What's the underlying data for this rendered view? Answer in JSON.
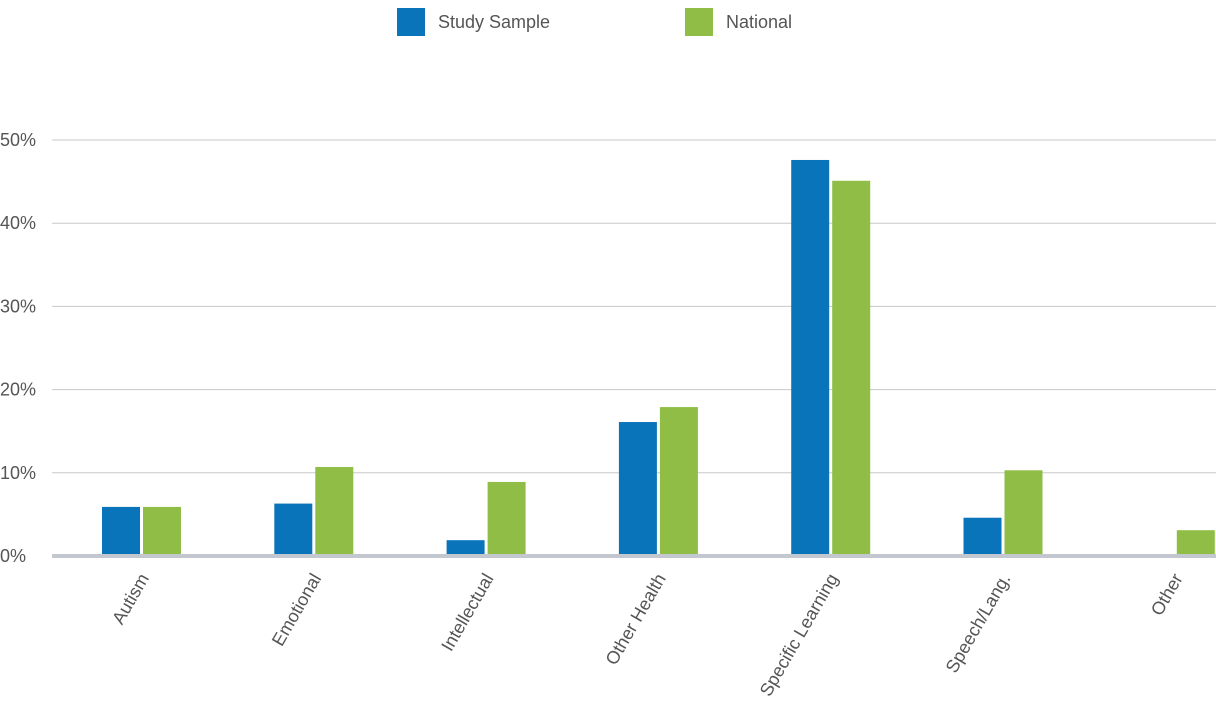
{
  "chart_data": {
    "type": "bar",
    "categories": [
      "Autism",
      "Emotional",
      "Intellectual",
      "Other Health",
      "Specific Learning",
      "Speech/Lang.",
      "Other"
    ],
    "series": [
      {
        "name": "Study Sample",
        "color": "#0a74bb",
        "values": [
          5.9,
          6.3,
          1.9,
          16.1,
          47.6,
          4.6,
          0
        ]
      },
      {
        "name": "National",
        "color": "#8fbd45",
        "values": [
          5.9,
          10.7,
          8.9,
          17.9,
          45.1,
          10.3,
          3.1
        ]
      }
    ],
    "ylim": [
      0,
      50
    ],
    "yticks": [
      0,
      10,
      20,
      30,
      40,
      50
    ],
    "ytick_labels": [
      "0%",
      "10%",
      "20%",
      "30%",
      "40%",
      "50%"
    ],
    "grid": true,
    "legend_position": "top-center",
    "title": "",
    "xlabel": "",
    "ylabel": ""
  }
}
